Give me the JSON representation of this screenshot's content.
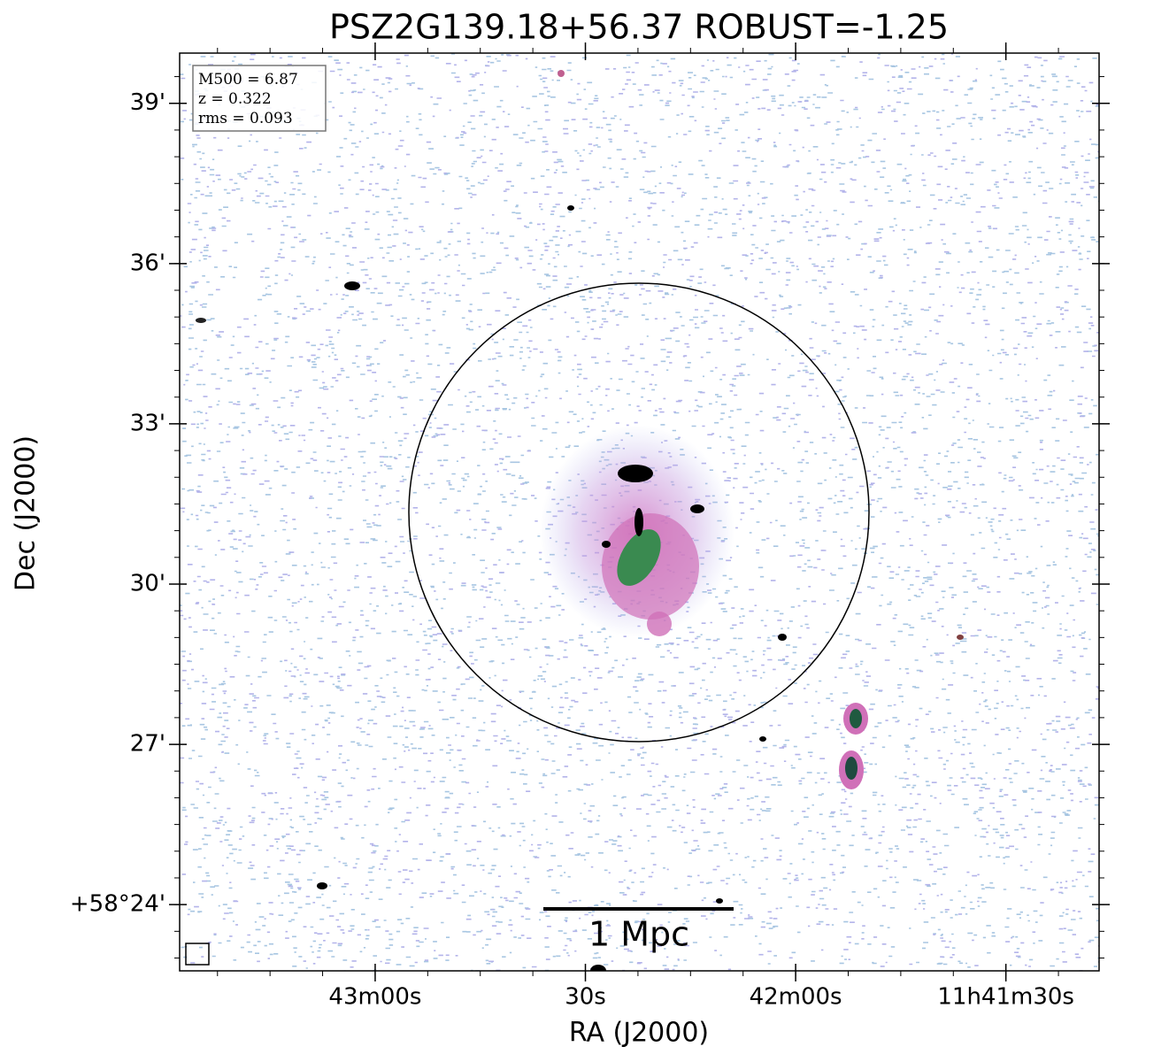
{
  "chart_data": {
    "type": "image",
    "title": "PSZ2G139.18+56.37 ROBUST=-1.25",
    "xlabel": "RA (J2000)",
    "ylabel": "Dec (J2000)",
    "xlim": [
      42207.9,
      42076.7
    ],
    "xticks": [
      {
        "value": 42180,
        "label": "43m00s"
      },
      {
        "value": 42150,
        "label": "30s"
      },
      {
        "value": 42120,
        "label": "42m00s"
      },
      {
        "value": 42090,
        "label": "11h41m30s"
      }
    ],
    "ylim": [
      22.76,
      39.94
    ],
    "yticks": [
      {
        "value": 24,
        "label": "+58°24'"
      },
      {
        "value": 27,
        "label": "27'"
      },
      {
        "value": 30,
        "label": "30'"
      },
      {
        "value": 33,
        "label": "33'"
      },
      {
        "value": 36,
        "label": "36'"
      },
      {
        "value": 39,
        "label": "39'"
      }
    ],
    "info_lines": [
      "M500 = 6.87",
      "z = 0.322",
      "rms = 0.093"
    ],
    "scalebar_label": "1 Mpc"
  }
}
